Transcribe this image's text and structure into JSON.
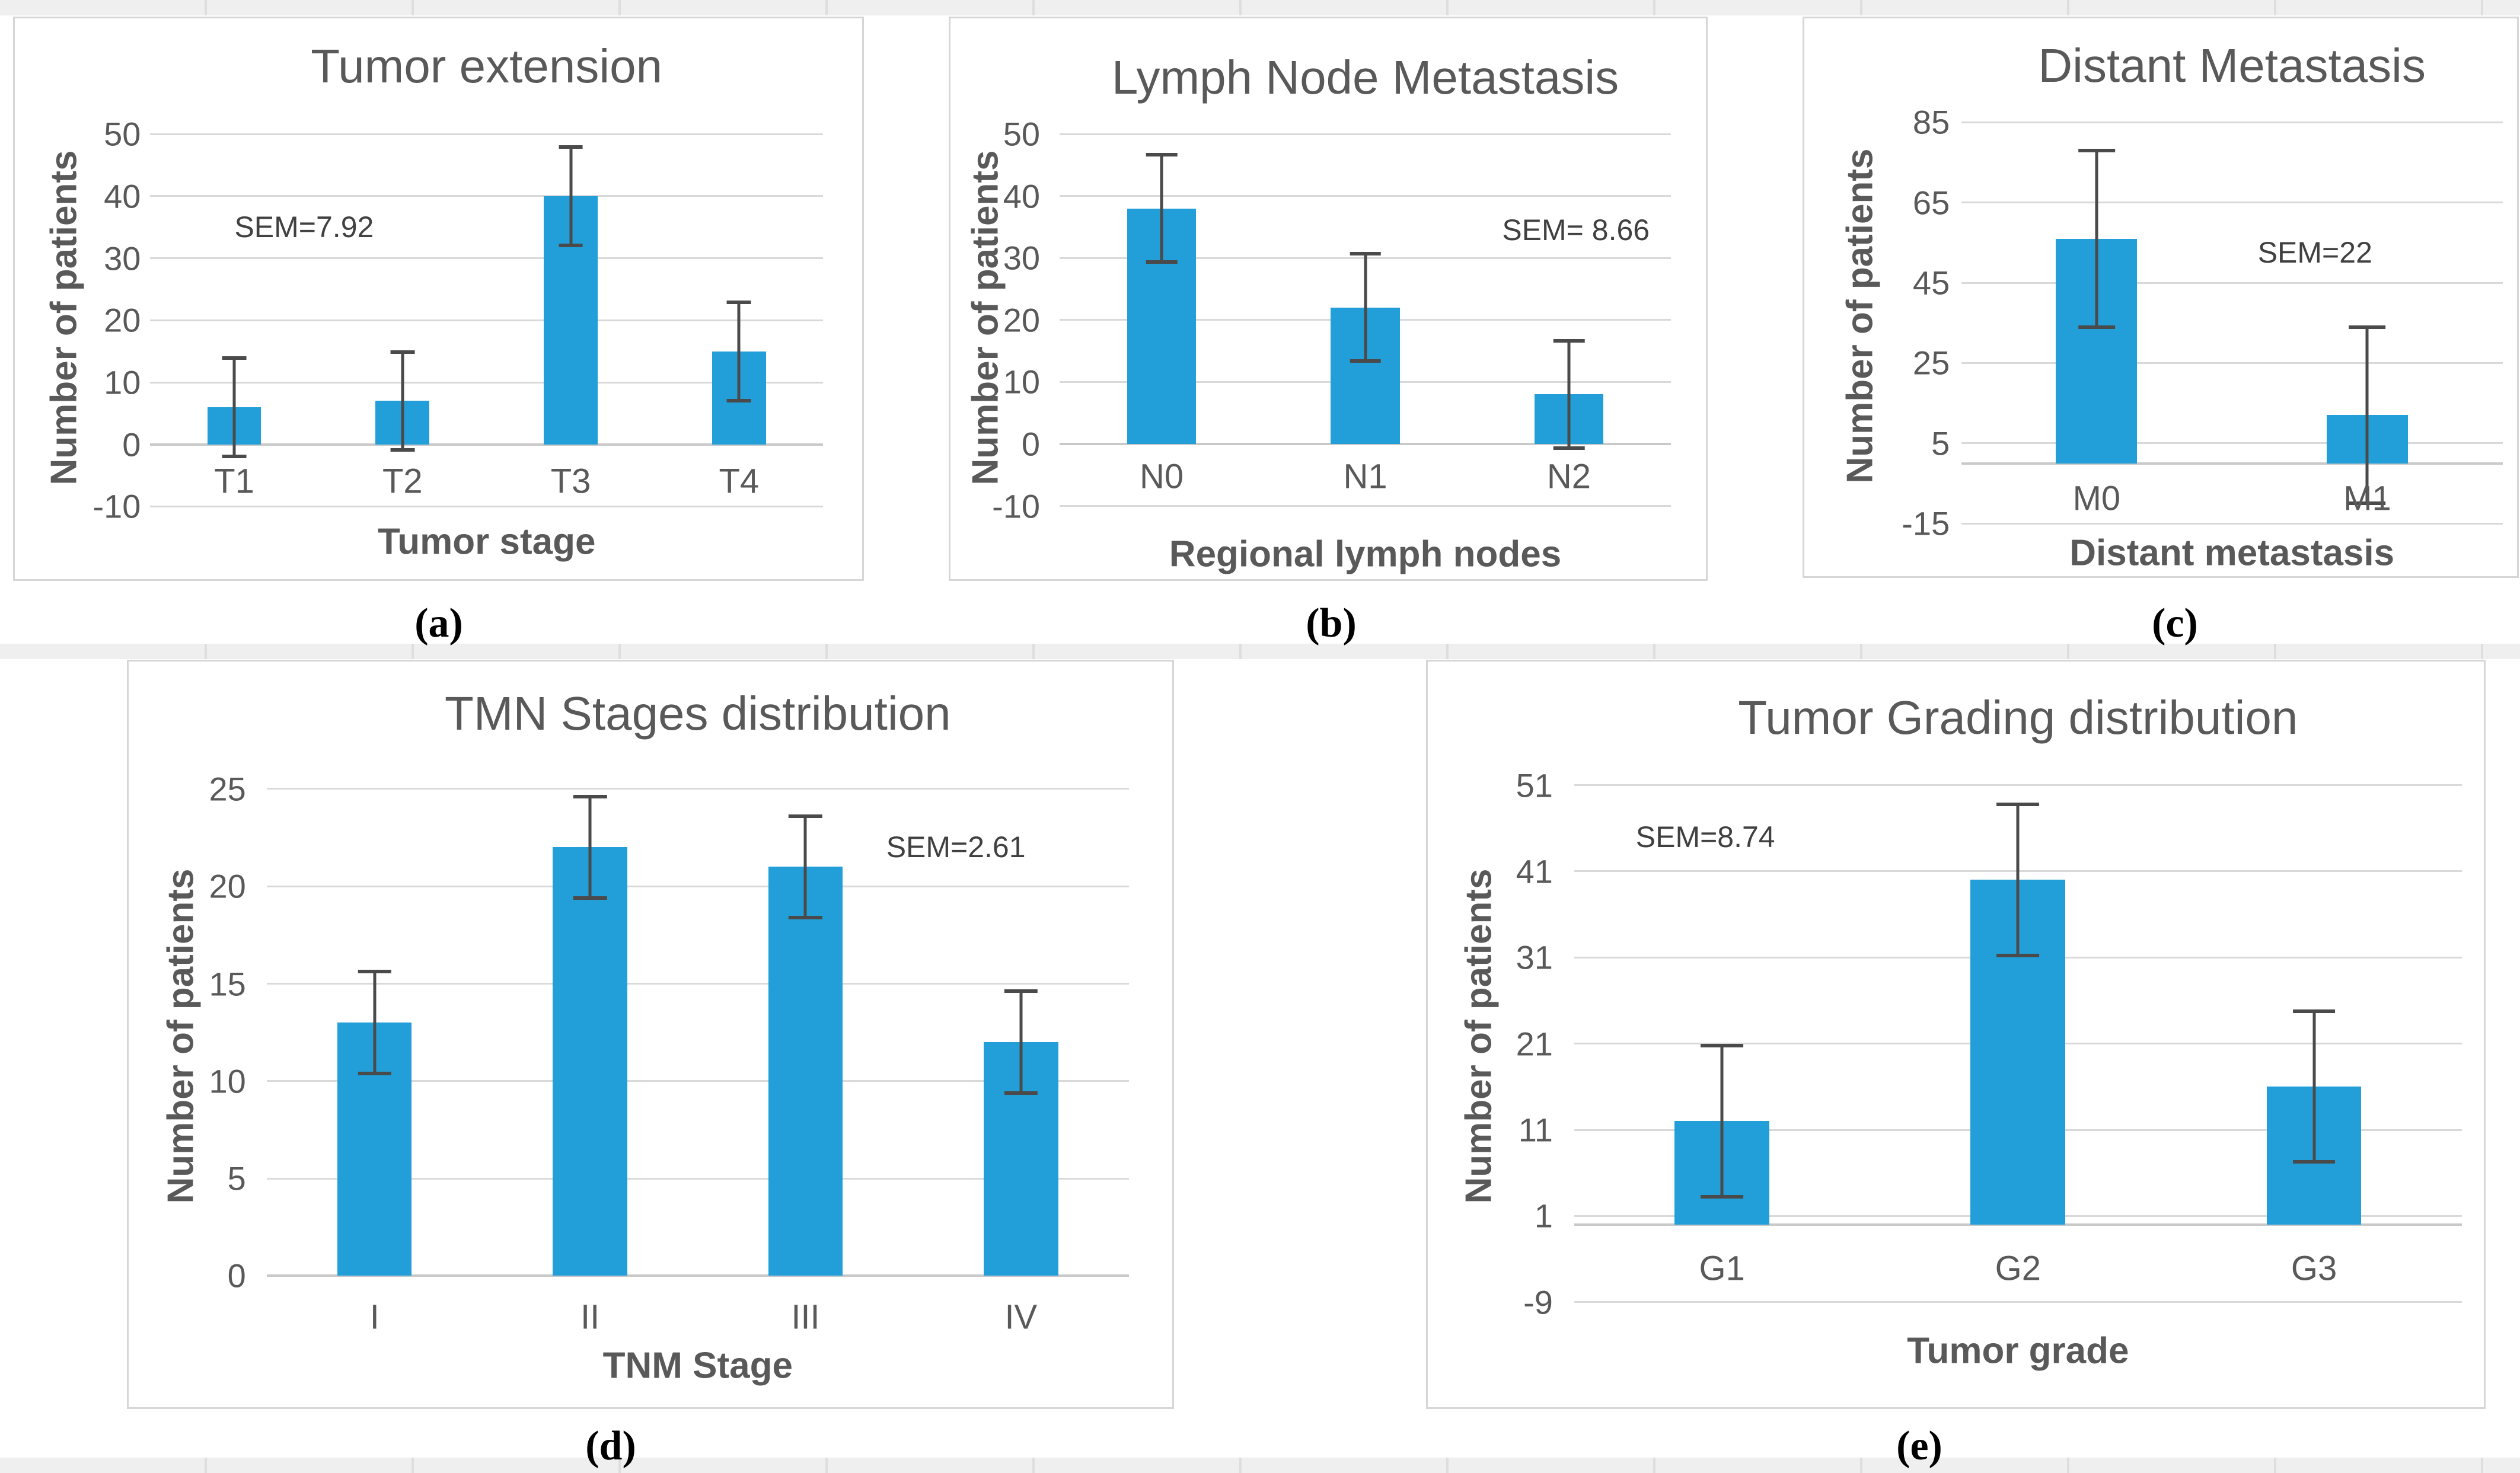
{
  "figure": {
    "captions": [
      "(a)",
      "(b)",
      "(c)",
      "(d)",
      "(e)"
    ]
  },
  "colors": {
    "bar": "#229fd9",
    "error_bar": "#4a4a4a",
    "gridline": "#d9d9d9",
    "text": "#595959",
    "panel_border": "#d6d6d6",
    "row_strip": "#efefef"
  },
  "chart_data": [
    {
      "type": "bar",
      "title": "Tumor extension",
      "xlabel": "Tumor stage",
      "ylabel": "Number of patients",
      "categories": [
        "T1",
        "T2",
        "T3",
        "T4"
      ],
      "values": [
        6,
        7,
        40,
        15
      ],
      "sem": 7.92,
      "sem_label": "SEM=7.92",
      "error_low": [
        -1.92,
        -0.92,
        32.08,
        7.08
      ],
      "error_high": [
        13.92,
        14.92,
        47.92,
        22.92
      ],
      "yticks": [
        50,
        40,
        30,
        20,
        10,
        0,
        -10
      ],
      "ylim": [
        -10,
        50
      ],
      "grid": true,
      "legend": false,
      "caption": "(a)"
    },
    {
      "type": "bar",
      "title": "Lymph Node Metastasis",
      "xlabel": "Regional lymph nodes",
      "ylabel": "Number of patients",
      "categories": [
        "N0",
        "N1",
        "N2"
      ],
      "values": [
        38,
        22,
        8
      ],
      "sem": 8.66,
      "sem_label": "SEM= 8.66",
      "error_low": [
        29.34,
        13.34,
        -0.66
      ],
      "error_high": [
        46.66,
        30.66,
        16.66
      ],
      "yticks": [
        50,
        40,
        30,
        20,
        10,
        0,
        -10
      ],
      "ylim": [
        -10,
        50
      ],
      "grid": true,
      "legend": false,
      "caption": "(b)"
    },
    {
      "type": "bar",
      "title": "Distant Metastasis",
      "xlabel": "Distant metastasis",
      "ylabel": "Number of patients",
      "categories": [
        "M0",
        "M1"
      ],
      "values": [
        56,
        12
      ],
      "sem": 22,
      "sem_label": "SEM=22",
      "error_low": [
        34,
        -10
      ],
      "error_high": [
        78,
        34
      ],
      "yticks": [
        85,
        65,
        45,
        25,
        5,
        -15
      ],
      "ylim": [
        -15,
        85
      ],
      "grid": true,
      "legend": false,
      "caption": "(c)"
    },
    {
      "type": "bar",
      "title": "TMN Stages distribution",
      "xlabel": "TNM Stage",
      "ylabel": "Number of patients",
      "categories": [
        "I",
        "II",
        "III",
        "IV"
      ],
      "values": [
        13,
        22,
        21,
        12
      ],
      "sem": 2.61,
      "sem_label": "SEM=2.61",
      "error_low": [
        10.39,
        19.39,
        18.39,
        9.39
      ],
      "error_high": [
        15.61,
        24.61,
        23.61,
        14.61
      ],
      "yticks": [
        25,
        20,
        15,
        10,
        5,
        0
      ],
      "ylim": [
        0,
        25
      ],
      "grid": true,
      "legend": false,
      "caption": "(d)"
    },
    {
      "type": "bar",
      "title": "Tumor Grading distribution",
      "xlabel": "Tumor grade",
      "ylabel": "Number of patients",
      "categories": [
        "G1",
        "G2",
        "G3"
      ],
      "values": [
        12,
        40,
        16
      ],
      "sem": 8.74,
      "sem_label": "SEM=8.74",
      "error_low": [
        3.26,
        31.26,
        7.26
      ],
      "error_high": [
        20.74,
        48.74,
        24.74
      ],
      "yticks": [
        51,
        41,
        31,
        21,
        11,
        1,
        -9
      ],
      "ylim": [
        -9,
        51
      ],
      "grid": true,
      "legend": false,
      "caption": "(e)"
    }
  ]
}
